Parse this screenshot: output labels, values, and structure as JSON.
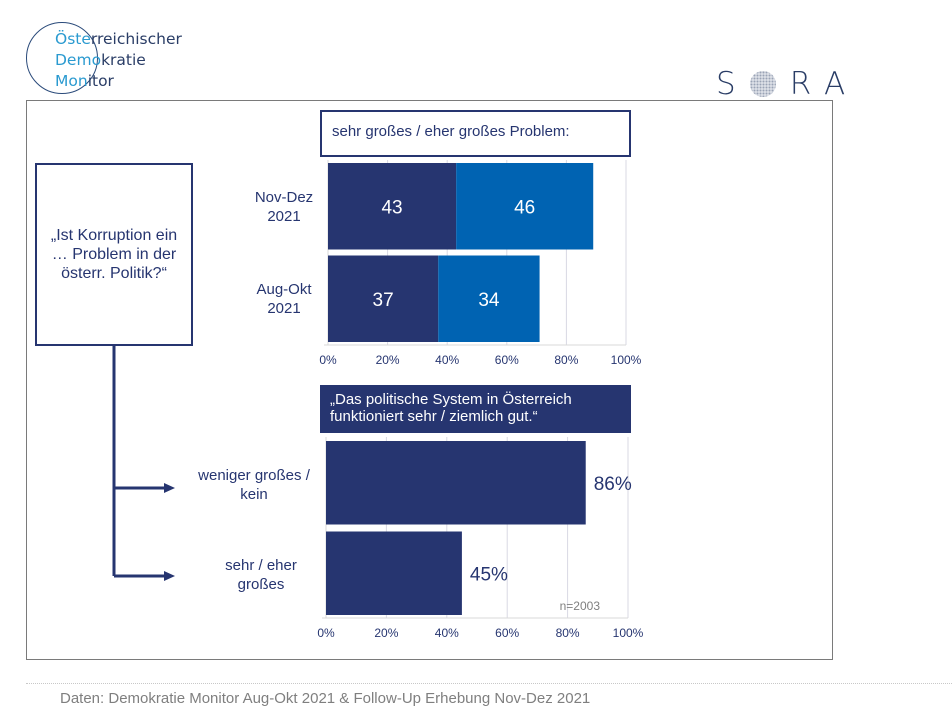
{
  "logo": {
    "line1_a": "Öste",
    "line1_b": "rreichischer",
    "line2_a": "Demo",
    "line2_b": "kratie",
    "line3_a": "Mon",
    "line3_b": "itor"
  },
  "brand": {
    "left": "S",
    "right": "RA",
    "navy": "#263570",
    "blue": "#0063B2"
  },
  "question": "„Ist Korruption ein … Problem in der österr. Politik?“",
  "chart1_title": "sehr großes / eher großes Problem:",
  "chart2_title": "„Das politische System in Österreich funktioniert sehr / ziemlich gut.“",
  "footer": "Daten: Demokratie Monitor Aug-Okt 2021 & Follow-Up Erhebung Nov-Dez 2021",
  "chart_data": [
    {
      "type": "bar",
      "orientation": "horizontal",
      "stacked": true,
      "title": "sehr großes / eher großes Problem:",
      "categories": [
        "Nov-Dez 2021",
        "Aug-Okt 2021"
      ],
      "category_lines": [
        [
          "Nov-Dez",
          "2021"
        ],
        [
          "Aug-Okt",
          "2021"
        ]
      ],
      "series": [
        {
          "name": "sehr großes Problem",
          "values": [
            43,
            37
          ],
          "color": "#263570"
        },
        {
          "name": "eher großes Problem",
          "values": [
            46,
            34
          ],
          "color": "#0063B2"
        }
      ],
      "xlim": [
        0,
        100
      ],
      "xticks": [
        "0%",
        "20%",
        "40%",
        "60%",
        "80%",
        "100%"
      ],
      "grid": true
    },
    {
      "type": "bar",
      "orientation": "horizontal",
      "title": "„Das politische System in Österreich funktioniert sehr / ziemlich gut.“",
      "categories": [
        "weniger großes / kein",
        "sehr / eher großes"
      ],
      "category_lines": [
        [
          "weniger großes /",
          "kein"
        ],
        [
          "sehr / eher",
          "großes"
        ]
      ],
      "values": [
        86,
        45
      ],
      "labels": [
        "86%",
        "45%"
      ],
      "color": "#263570",
      "xlim": [
        0,
        100
      ],
      "xticks": [
        "0%",
        "20%",
        "40%",
        "60%",
        "80%",
        "100%"
      ],
      "annotation": "n=2003",
      "grid": true
    }
  ]
}
